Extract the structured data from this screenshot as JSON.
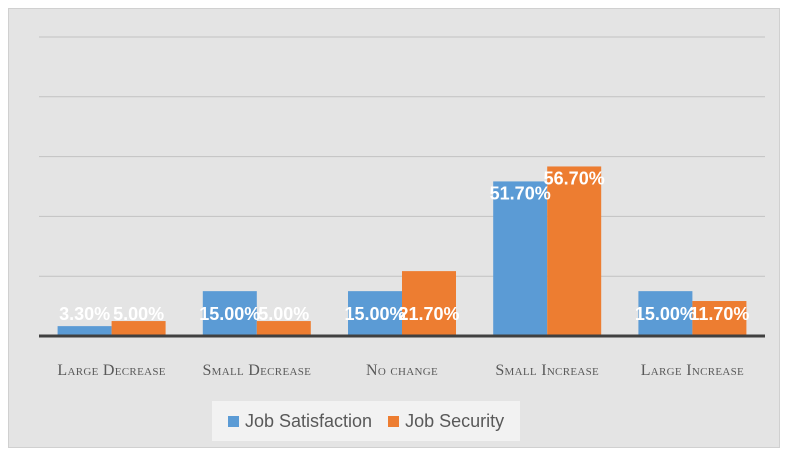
{
  "chart_data": {
    "type": "bar",
    "categories": [
      "Large Decrease",
      "Small Decrease",
      "No change",
      "Small Increase",
      "Large Increase"
    ],
    "series": [
      {
        "name": "Job Satisfaction",
        "color": "#5b9bd5",
        "values": [
          3.3,
          15.0,
          15.0,
          51.7,
          15.0
        ],
        "labels": [
          "3.30%",
          "15.00%",
          "15.00%",
          "51.70%",
          "15.00%"
        ]
      },
      {
        "name": "Job Security",
        "color": "#ed7d31",
        "values": [
          5.0,
          5.0,
          21.7,
          56.7,
          11.7
        ],
        "labels": [
          "5.00%",
          "5.00%",
          "21.70%",
          "56.70%",
          "11.70%"
        ]
      }
    ],
    "ylim": [
      0,
      100
    ],
    "ytick_step": 20,
    "grid": true,
    "legend_position": "bottom",
    "title": "",
    "xlabel": "",
    "ylabel": ""
  }
}
